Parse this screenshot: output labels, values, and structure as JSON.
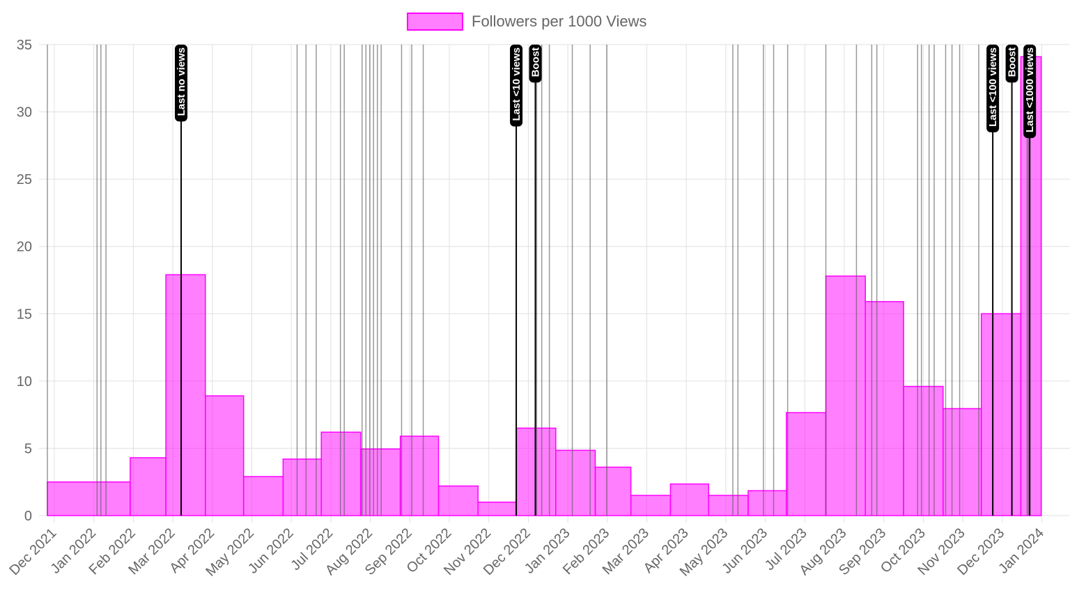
{
  "legend": {
    "label": "Followers per 1000 Views"
  },
  "colors": {
    "fill": "rgba(255, 0, 255, 0.5)",
    "stroke": "#ff00ff",
    "grid": "#e0e0e0",
    "ticks": "#666666",
    "event_line": "#555555",
    "annotation_line": "#000000",
    "annotation_bg": "#000000"
  },
  "chart_data": {
    "type": "bar",
    "style": "stepped-area",
    "title": "",
    "xlabel": "",
    "ylabel": "",
    "ylim": [
      0,
      35
    ],
    "yticks": [
      0,
      5,
      10,
      15,
      20,
      25,
      30,
      35
    ],
    "grid": true,
    "legend_position": "top-center",
    "x_unit": "month",
    "categories": [
      "Dec 2021",
      "Jan 2022",
      "Feb 2022",
      "Mar 2022",
      "Apr 2022",
      "May 2022",
      "Jun 2022",
      "Jul 2022",
      "Aug 2022",
      "Sep 2022",
      "Oct 2022",
      "Nov 2022",
      "Dec 2022",
      "Jan 2023",
      "Feb 2023",
      "Mar 2023",
      "Apr 2023",
      "May 2023",
      "Jun 2023",
      "Jul 2023",
      "Aug 2023",
      "Sep 2023",
      "Oct 2023",
      "Nov 2023",
      "Dec 2023",
      "Jan 2024"
    ],
    "series": [
      {
        "name": "Followers per 1000 Views",
        "segments": [
          {
            "start": "2021-11-27",
            "end": "2022-01-31",
            "value": 2.5
          },
          {
            "start": "2022-01-31",
            "end": "2022-02-28",
            "value": 4.3
          },
          {
            "start": "2022-02-28",
            "end": "2022-03-31",
            "value": 17.9
          },
          {
            "start": "2022-03-31",
            "end": "2022-04-30",
            "value": 8.9
          },
          {
            "start": "2022-04-30",
            "end": "2022-05-31",
            "value": 2.9
          },
          {
            "start": "2022-05-31",
            "end": "2022-06-30",
            "value": 4.2
          },
          {
            "start": "2022-06-30",
            "end": "2022-07-31",
            "value": 6.2
          },
          {
            "start": "2022-07-31",
            "end": "2022-08-31",
            "value": 4.95
          },
          {
            "start": "2022-08-31",
            "end": "2022-09-30",
            "value": 5.9
          },
          {
            "start": "2022-09-30",
            "end": "2022-10-31",
            "value": 2.2
          },
          {
            "start": "2022-10-31",
            "end": "2022-11-30",
            "value": 1.0
          },
          {
            "start": "2022-11-30",
            "end": "2022-12-31",
            "value": 6.5
          },
          {
            "start": "2022-12-31",
            "end": "2023-01-31",
            "value": 4.85
          },
          {
            "start": "2023-01-31",
            "end": "2023-02-28",
            "value": 3.6
          },
          {
            "start": "2023-02-28",
            "end": "2023-03-31",
            "value": 1.5
          },
          {
            "start": "2023-03-31",
            "end": "2023-04-30",
            "value": 2.35
          },
          {
            "start": "2023-04-30",
            "end": "2023-05-31",
            "value": 1.5
          },
          {
            "start": "2023-05-31",
            "end": "2023-06-30",
            "value": 1.85
          },
          {
            "start": "2023-06-30",
            "end": "2023-07-31",
            "value": 7.65
          },
          {
            "start": "2023-07-31",
            "end": "2023-08-31",
            "value": 17.8
          },
          {
            "start": "2023-08-31",
            "end": "2023-09-30",
            "value": 15.9
          },
          {
            "start": "2023-09-30",
            "end": "2023-10-31",
            "value": 9.6
          },
          {
            "start": "2023-10-31",
            "end": "2023-11-30",
            "value": 7.95
          },
          {
            "start": "2023-11-30",
            "end": "2023-12-31",
            "value": 15.0
          },
          {
            "start": "2023-12-31",
            "end": "2024-01-16",
            "value": 34.1
          }
        ]
      }
    ],
    "event_markers": [
      "2021-11-27",
      "2022-01-05",
      "2022-01-08",
      "2022-01-12",
      "2022-06-11",
      "2022-06-18",
      "2022-06-26",
      "2022-07-15",
      "2022-07-18",
      "2022-08-01",
      "2022-08-04",
      "2022-08-07",
      "2022-08-10",
      "2022-08-13",
      "2022-08-16",
      "2022-09-01",
      "2022-09-09",
      "2022-09-18",
      "2022-12-16",
      "2022-12-20",
      "2022-12-26",
      "2023-01-13",
      "2023-01-27",
      "2023-02-09",
      "2023-05-19",
      "2023-05-23",
      "2023-06-12",
      "2023-06-20",
      "2023-07-01",
      "2023-07-31",
      "2023-08-24",
      "2023-09-05",
      "2023-09-09",
      "2023-10-11",
      "2023-10-14",
      "2023-10-20",
      "2023-10-24",
      "2023-11-02",
      "2023-11-07",
      "2023-11-13",
      "2023-11-28",
      "2024-01-05",
      "2024-01-06",
      "2024-01-07"
    ],
    "annotations": [
      {
        "label": "Last no views",
        "date": "2022-03-12"
      },
      {
        "label": "Last <10 views",
        "date": "2022-11-30"
      },
      {
        "label": "Boost",
        "date": "2022-12-15"
      },
      {
        "label": "Last <100 views",
        "date": "2023-12-09"
      },
      {
        "label": "Boost",
        "date": "2023-12-24"
      },
      {
        "label": "Last <1000 views",
        "date": "2024-01-07"
      }
    ]
  }
}
